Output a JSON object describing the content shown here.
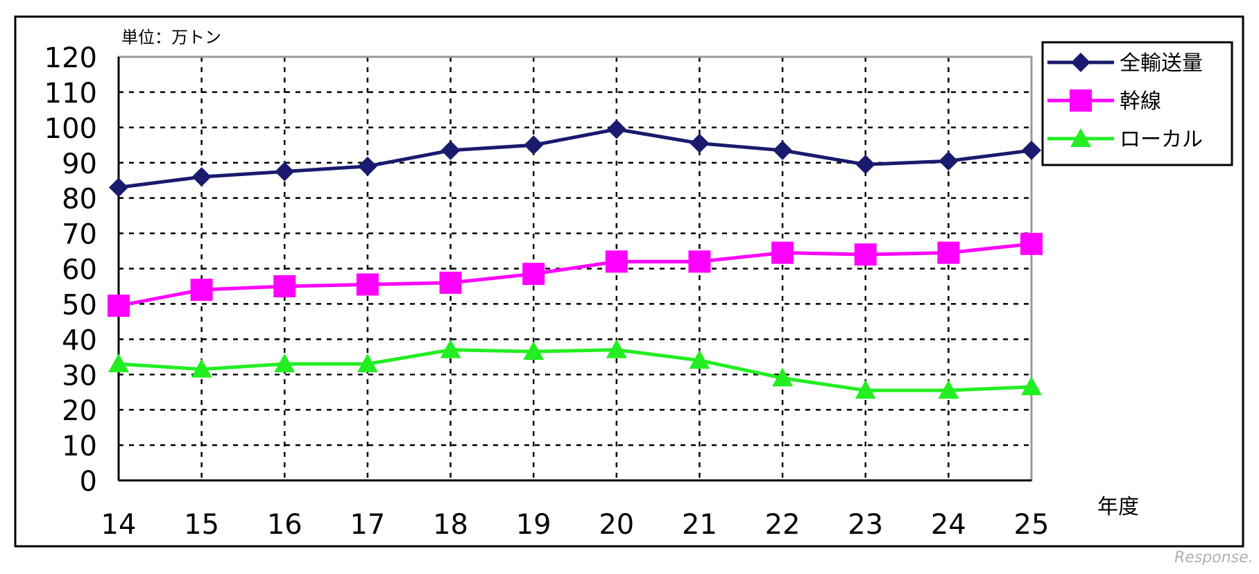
{
  "chart_data": {
    "type": "line",
    "unit_label": "単位：万トン",
    "xlabel": "年度",
    "ylabel": "",
    "categories": [
      "14",
      "15",
      "16",
      "17",
      "18",
      "19",
      "20",
      "21",
      "22",
      "23",
      "24",
      "25"
    ],
    "ylim": [
      0,
      120
    ],
    "yticks": [
      0,
      10,
      20,
      30,
      40,
      50,
      60,
      70,
      80,
      90,
      100,
      110,
      120
    ],
    "grid": true,
    "legend_position": "top-right",
    "series": [
      {
        "name": "全輸送量",
        "marker": "diamond",
        "color": "#1a1a6e",
        "values": [
          83,
          86,
          87.5,
          89,
          93.5,
          95,
          99.5,
          95.5,
          93.5,
          89.5,
          90.5,
          93.5
        ]
      },
      {
        "name": "幹線",
        "marker": "square",
        "color": "#ff00ff",
        "values": [
          49.5,
          54,
          55,
          55.5,
          56,
          58.5,
          62,
          62,
          64.5,
          64,
          64.5,
          67
        ]
      },
      {
        "name": "ローカル",
        "marker": "triangle",
        "color": "#22ee22",
        "values": [
          33,
          31.5,
          33,
          33,
          37,
          36.5,
          37,
          34,
          29,
          25.5,
          25.5,
          26.5
        ]
      }
    ]
  },
  "watermark": "Response."
}
